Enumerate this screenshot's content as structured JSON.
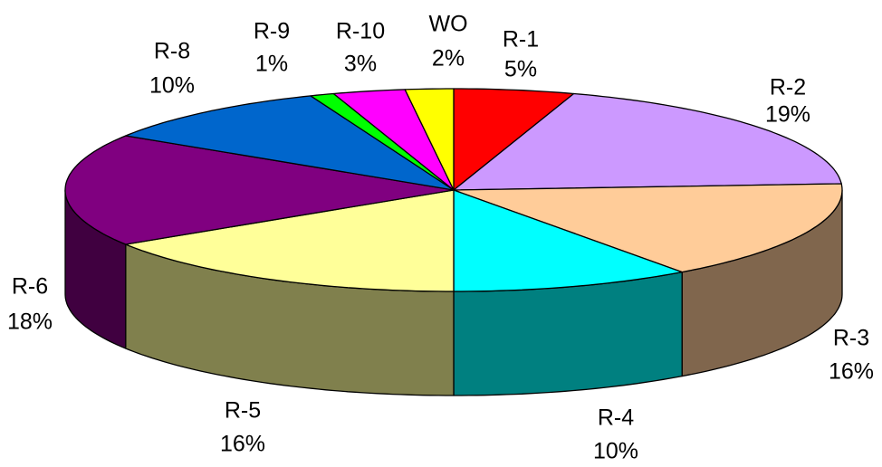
{
  "chart_data": {
    "type": "pie3d",
    "categories": [
      "R-1",
      "R-2",
      "R-3",
      "R-4",
      "R-5",
      "R-6",
      "R-8",
      "R-9",
      "R-10",
      "WO"
    ],
    "values": [
      5,
      19,
      16,
      10,
      16,
      18,
      10,
      1,
      3,
      2
    ],
    "value_labels": [
      "5%",
      "19%",
      "16%",
      "10%",
      "16%",
      "18%",
      "10%",
      "1%",
      "3%",
      "2%"
    ],
    "colors": [
      "#ff0000",
      "#cc99ff",
      "#ffcc99",
      "#00ffff",
      "#ffff99",
      "#800080",
      "#0066cc",
      "#00ff00",
      "#ff00ff",
      "#ffff00"
    ]
  }
}
